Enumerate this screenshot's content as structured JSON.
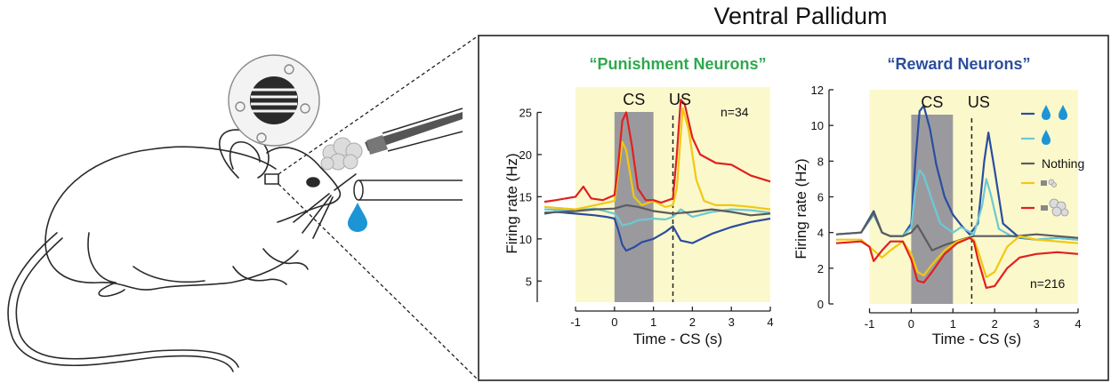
{
  "figure": {
    "title": "Ventral Pallidum",
    "colors": {
      "shade": "#fbf8cc",
      "cs_box": "#9a9a9e",
      "frame": "#222222"
    }
  },
  "chart_data": [
    {
      "type": "line",
      "title": "“Punishment Neurons”",
      "title_color": "#2fa84f",
      "xlabel": "Time - CS (s)",
      "ylabel": "Firing rate (Hz)",
      "xlim": [
        -1.8,
        4
      ],
      "ylim": [
        2.5,
        28
      ],
      "xticks": [
        -1,
        0,
        1,
        2,
        3,
        4
      ],
      "yticks": [
        5,
        10,
        15,
        20,
        25
      ],
      "shaded_x": [
        -1,
        4
      ],
      "cs_x": [
        0,
        1
      ],
      "us_x": 1.5,
      "event_labels": [
        "CS",
        "US"
      ],
      "annotation": "n=34",
      "grid": false,
      "series": [
        {
          "color": "#2b4da0",
          "x": [
            -1.8,
            -1.5,
            -1,
            -0.5,
            -0.2,
            0,
            0.1,
            0.2,
            0.3,
            0.5,
            0.7,
            1,
            1.3,
            1.5,
            1.7,
            2,
            2.5,
            3,
            3.5,
            4
          ],
          "y": [
            13.0,
            13.2,
            13.0,
            12.8,
            12.6,
            12.4,
            11.0,
            9.3,
            8.6,
            9.0,
            9.6,
            10.0,
            10.8,
            11.5,
            9.8,
            9.5,
            10.6,
            11.4,
            12.0,
            12.4
          ]
        },
        {
          "color": "#6cc9d4",
          "x": [
            -1.8,
            -1,
            -0.5,
            0,
            0.1,
            0.2,
            0.4,
            0.6,
            0.8,
            1,
            1.3,
            1.5,
            1.7,
            2,
            2.5,
            3,
            3.5,
            4
          ],
          "y": [
            13.5,
            13.4,
            13.6,
            13.0,
            12.4,
            11.6,
            11.8,
            12.2,
            12.3,
            12.4,
            12.3,
            12.6,
            13.5,
            12.6,
            13.2,
            13.5,
            13.4,
            13.1
          ]
        },
        {
          "color": "#5c5c5c",
          "x": [
            -1.8,
            -1,
            -0.5,
            0,
            0.3,
            0.6,
            1,
            1.5,
            2,
            2.5,
            3,
            3.5,
            4
          ],
          "y": [
            13.1,
            13.3,
            13.5,
            13.6,
            14.0,
            13.8,
            13.3,
            13.0,
            13.2,
            13.5,
            13.2,
            12.8,
            13.0
          ]
        },
        {
          "color": "#f2c80f",
          "x": [
            -1.8,
            -1,
            -0.5,
            0,
            0.1,
            0.2,
            0.3,
            0.5,
            0.7,
            1,
            1.3,
            1.5,
            1.6,
            1.75,
            1.9,
            2.1,
            2.3,
            2.6,
            3,
            3.5,
            4
          ],
          "y": [
            13.8,
            13.5,
            14.0,
            14.5,
            18.0,
            21.5,
            20.5,
            15.0,
            14.0,
            14.5,
            13.8,
            14.0,
            16.0,
            25.5,
            23.0,
            17.0,
            14.5,
            14.0,
            14.0,
            13.8,
            13.5
          ]
        },
        {
          "color": "#e02020",
          "x": [
            -1.8,
            -1.5,
            -1,
            -0.8,
            -0.6,
            -0.3,
            0,
            0.1,
            0.2,
            0.3,
            0.45,
            0.6,
            0.8,
            1,
            1.2,
            1.5,
            1.6,
            1.7,
            1.8,
            2,
            2.2,
            2.6,
            3,
            3.5,
            4
          ],
          "y": [
            14.4,
            14.6,
            15.0,
            16.2,
            14.8,
            14.6,
            15.2,
            19.0,
            24.0,
            25.0,
            21.0,
            16.0,
            14.6,
            14.6,
            14.3,
            14.8,
            20.0,
            26.5,
            26.0,
            22.0,
            20.0,
            19.0,
            18.8,
            17.5,
            16.8
          ]
        }
      ]
    },
    {
      "type": "line",
      "title": "“Reward Neurons”",
      "title_color": "#2c4e9c",
      "xlabel": "Time - CS (s)",
      "ylabel": "Firing rate (Hz)",
      "xlim": [
        -1.8,
        4
      ],
      "ylim": [
        0,
        12
      ],
      "xticks": [
        -1,
        0,
        1,
        2,
        3,
        4
      ],
      "yticks": [
        0,
        2,
        4,
        6,
        8,
        10,
        12
      ],
      "shaded_x": [
        -1,
        4
      ],
      "cs_x": [
        0,
        1
      ],
      "us_x": 1.45,
      "event_labels": [
        "CS",
        "US"
      ],
      "annotation": "n=216",
      "grid": false,
      "legend": {
        "placement": "right",
        "entries": [
          {
            "label": "",
            "icon": "two-water-drops-icon",
            "color": "#2b4da0"
          },
          {
            "label": "",
            "icon": "water-drop-icon",
            "color": "#6cc9d4"
          },
          {
            "label": "Nothing",
            "icon": "",
            "color": "#5c5c5c"
          },
          {
            "label": "",
            "icon": "small-air-puff-icon",
            "color": "#f2c80f"
          },
          {
            "label": "",
            "icon": "large-air-puff-icon",
            "color": "#e02020"
          }
        ]
      },
      "series": [
        {
          "color": "#2b4da0",
          "x": [
            -1.8,
            -1.2,
            -0.9,
            -0.7,
            -0.5,
            -0.2,
            0,
            0.1,
            0.2,
            0.3,
            0.45,
            0.6,
            0.8,
            1,
            1.2,
            1.4,
            1.6,
            1.75,
            1.85,
            2,
            2.2,
            2.6,
            3,
            3.5,
            4
          ],
          "y": [
            3.9,
            4.0,
            5.2,
            4.0,
            3.8,
            3.8,
            4.5,
            8.0,
            10.8,
            11.1,
            9.8,
            7.8,
            6.0,
            5.0,
            4.4,
            3.9,
            4.5,
            8.0,
            9.6,
            7.5,
            4.5,
            3.7,
            3.6,
            3.7,
            3.6
          ]
        },
        {
          "color": "#6cc9d4",
          "x": [
            -1.8,
            -1.2,
            -0.9,
            -0.7,
            -0.5,
            -0.2,
            0,
            0.1,
            0.2,
            0.3,
            0.5,
            0.7,
            1,
            1.2,
            1.5,
            1.7,
            1.8,
            1.9,
            2.1,
            2.4,
            3,
            3.5,
            4
          ],
          "y": [
            3.9,
            4.0,
            5.0,
            4.0,
            3.8,
            3.8,
            4.3,
            6.5,
            7.5,
            7.2,
            5.8,
            4.5,
            4.0,
            4.3,
            3.9,
            5.5,
            7.0,
            6.2,
            4.2,
            3.8,
            3.6,
            3.7,
            3.6
          ]
        },
        {
          "color": "#5c5c5c",
          "x": [
            -1.8,
            -1.2,
            -0.9,
            -0.7,
            -0.5,
            -0.2,
            0,
            0.15,
            0.3,
            0.5,
            0.8,
            1.2,
            1.5,
            2,
            2.5,
            3,
            3.5,
            4
          ],
          "y": [
            3.9,
            4.0,
            5.1,
            4.0,
            3.8,
            3.8,
            4.0,
            4.4,
            3.8,
            3.0,
            3.3,
            3.6,
            3.8,
            3.8,
            3.8,
            3.9,
            3.8,
            3.7
          ]
        },
        {
          "color": "#f2c80f",
          "x": [
            -1.8,
            -1.2,
            -0.9,
            -0.7,
            -0.5,
            -0.2,
            0,
            0.15,
            0.3,
            0.5,
            0.8,
            1.1,
            1.4,
            1.5,
            1.6,
            1.8,
            2,
            2.3,
            2.6,
            3,
            3.5,
            4
          ],
          "y": [
            3.6,
            3.6,
            3.0,
            2.6,
            3.0,
            3.5,
            2.8,
            1.8,
            1.6,
            2.2,
            3.0,
            3.5,
            3.7,
            3.6,
            3.0,
            1.5,
            1.8,
            3.2,
            3.8,
            3.6,
            3.5,
            3.4
          ]
        },
        {
          "color": "#e02020",
          "x": [
            -1.8,
            -1.2,
            -1,
            -0.9,
            -0.7,
            -0.5,
            -0.2,
            0,
            0.15,
            0.3,
            0.5,
            0.8,
            1.1,
            1.4,
            1.5,
            1.6,
            1.8,
            2,
            2.3,
            2.6,
            3,
            3.5,
            4
          ],
          "y": [
            3.4,
            3.5,
            3.2,
            2.4,
            3.0,
            3.5,
            3.5,
            2.5,
            1.3,
            1.2,
            1.8,
            2.8,
            3.4,
            3.7,
            3.5,
            2.5,
            0.9,
            1.0,
            2.0,
            2.6,
            2.8,
            2.9,
            2.8
          ]
        }
      ]
    }
  ]
}
